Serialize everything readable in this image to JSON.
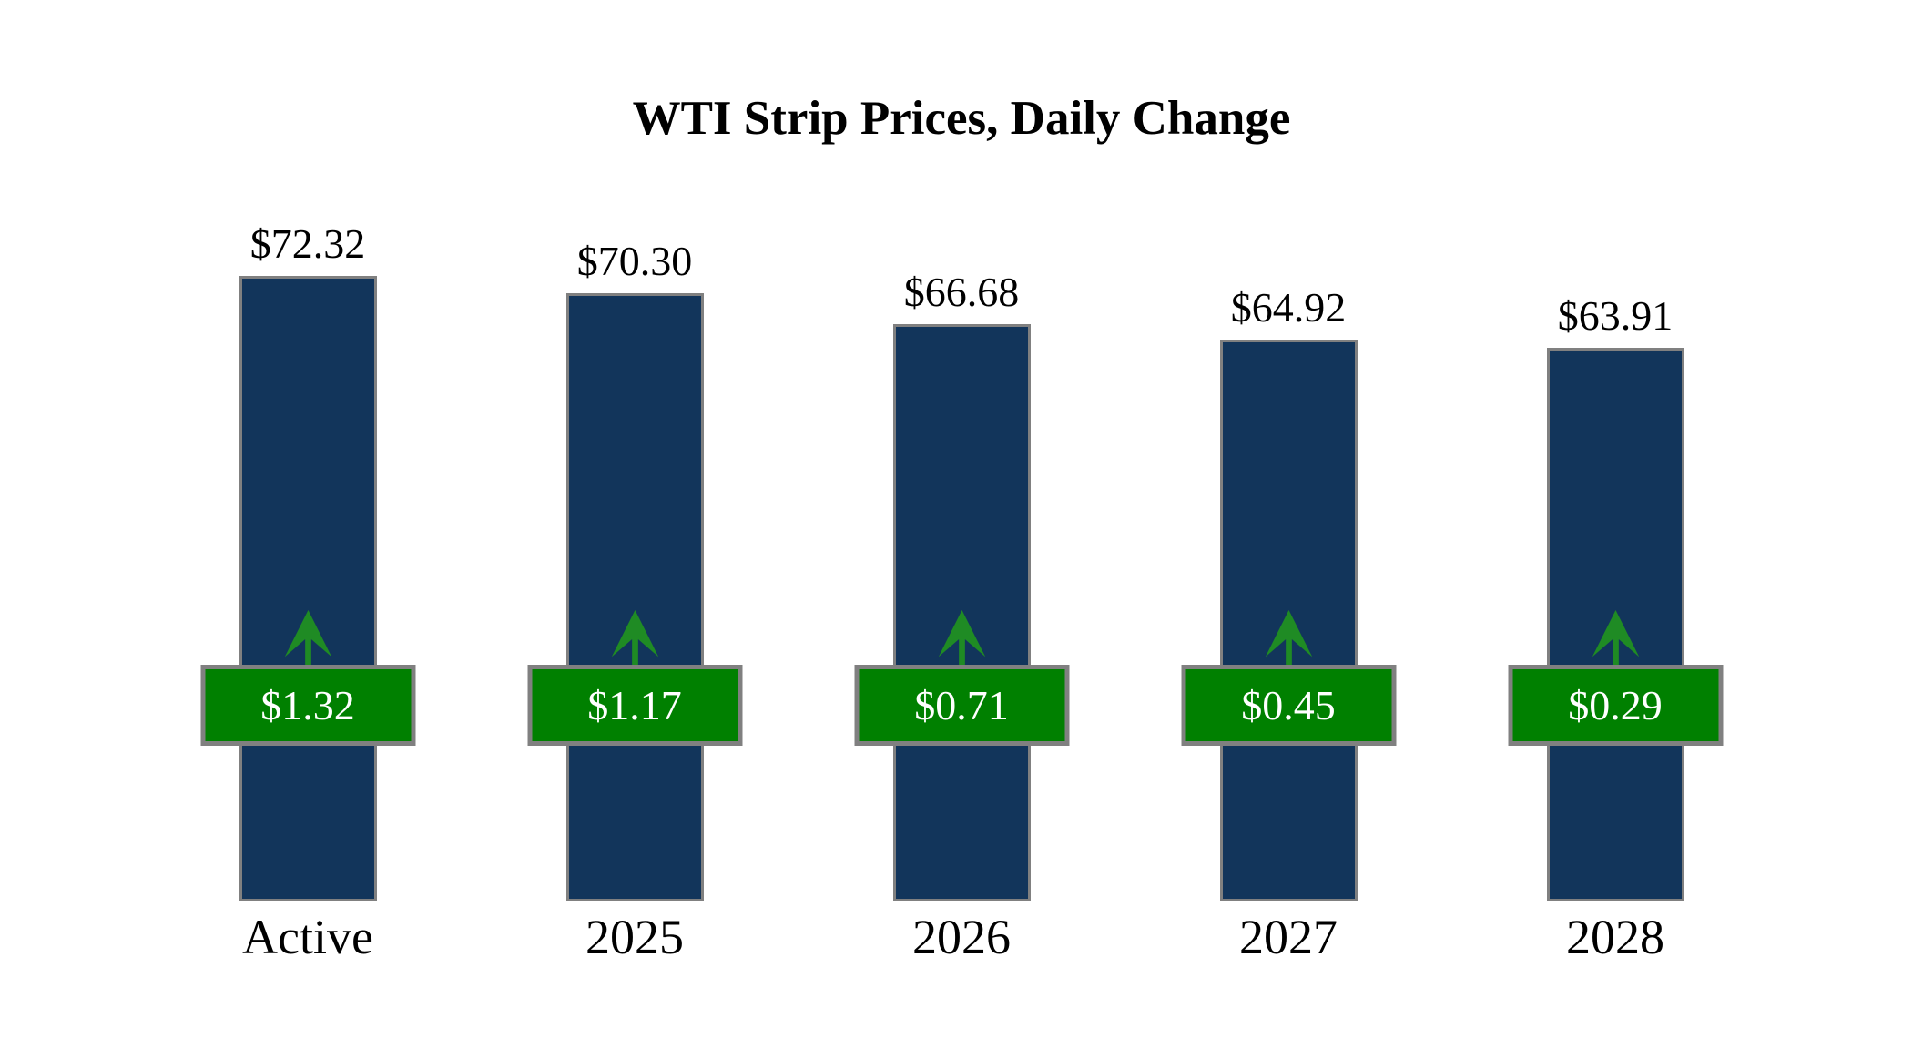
{
  "chart_data": {
    "type": "bar",
    "title": "WTI Strip Prices, Daily Change",
    "categories": [
      "Active",
      "2025",
      "2026",
      "2027",
      "2028"
    ],
    "series": [
      {
        "name": "strip-price",
        "values": [
          72.32,
          70.3,
          66.68,
          64.92,
          63.91
        ],
        "labels": [
          "$72.32",
          "$70.30",
          "$66.68",
          "$64.92",
          "$63.91"
        ]
      },
      {
        "name": "daily-change",
        "values": [
          1.32,
          1.17,
          0.71,
          0.45,
          0.29
        ],
        "labels": [
          "$1.32",
          "$1.17",
          "$0.71",
          "$0.45",
          "$0.29"
        ],
        "direction": "up"
      }
    ],
    "xlabel": "",
    "ylabel": "",
    "ylim": [
      0,
      80
    ],
    "grid": false,
    "legend": false,
    "colors": {
      "bar": "#12355b",
      "bar_border": "#808080",
      "badge": "#008000",
      "badge_border": "#808080",
      "badge_text": "#ffffff",
      "arrow": "#1f8b24",
      "label_text": "#000000",
      "background": "#ffffff"
    }
  }
}
